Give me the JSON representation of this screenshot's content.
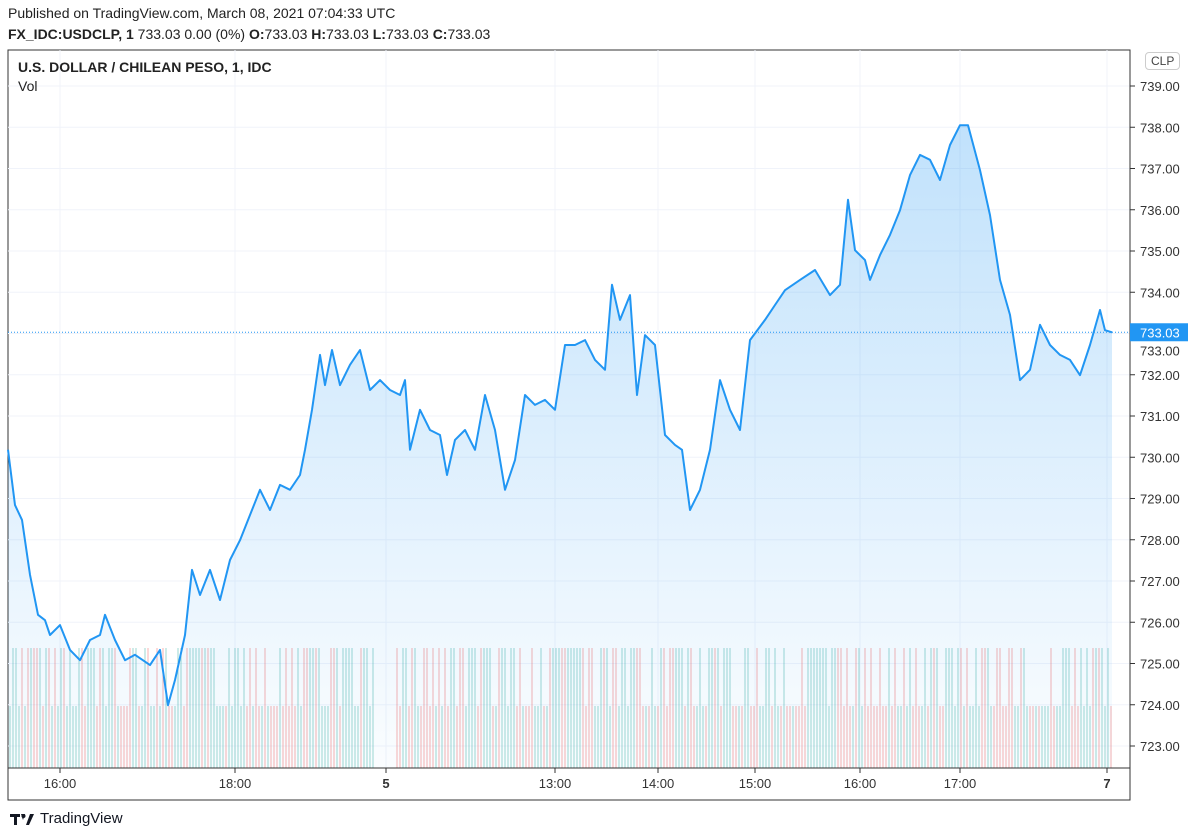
{
  "header": {
    "published": "Published on TradingView.com, March 08, 2021 07:04:33 UTC",
    "symbol": "FX_IDC:USDCLP, 1",
    "quote": "733.03 0.00 (0%)",
    "o_label": "O:",
    "o": "733.03",
    "h_label": "H:",
    "h": "733.03",
    "l_label": "L:",
    "l": "733.03",
    "c_label": "C:",
    "c": "733.03"
  },
  "legend": {
    "title": "U.S. DOLLAR / CHILEAN PESO, 1, IDC",
    "volume": "Vol"
  },
  "currency": "CLP",
  "branding": "TradingView",
  "colors": {
    "line": "#2196f3",
    "up_vol": "#26a69a",
    "down_vol": "#ef5350",
    "grid": "#f0f3fa"
  },
  "chart_data": {
    "type": "area",
    "title": "U.S. DOLLAR / CHILEAN PESO, 1, IDC",
    "ylim": [
      722.6,
      739.9
    ],
    "yticks": [
      "723.00",
      "724.00",
      "725.00",
      "726.00",
      "727.00",
      "728.00",
      "729.00",
      "730.00",
      "731.00",
      "732.00",
      "733.00",
      "734.00",
      "735.00",
      "736.00",
      "737.00",
      "738.00",
      "739.00"
    ],
    "last_price": "733.03",
    "xlim": [
      0,
      1122
    ],
    "xticks": [
      {
        "bar": 52,
        "label": "16:00",
        "bold": false
      },
      {
        "bar": 227,
        "label": "18:00",
        "bold": false
      },
      {
        "bar": 378,
        "label": "5",
        "bold": true
      },
      {
        "bar": 547,
        "label": "13:00",
        "bold": false
      },
      {
        "bar": 650,
        "label": "14:00",
        "bold": false
      },
      {
        "bar": 747,
        "label": "15:00",
        "bold": false
      },
      {
        "bar": 852,
        "label": "16:00",
        "bold": false
      },
      {
        "bar": 952,
        "label": "17:00",
        "bold": false
      },
      {
        "bar": 1099,
        "label": "7",
        "bold": true
      }
    ],
    "x": [
      0,
      7,
      14,
      22,
      30,
      37,
      42,
      52,
      62,
      72,
      82,
      92,
      97,
      107,
      117,
      127,
      142,
      152,
      160,
      167,
      177,
      184,
      192,
      202,
      212,
      222,
      232,
      242,
      252,
      262,
      272,
      282,
      292,
      297,
      304,
      312,
      317,
      324,
      332,
      342,
      352,
      362,
      372,
      382,
      392,
      397,
      402,
      412,
      422,
      432,
      439,
      447,
      457,
      467,
      477,
      487,
      497,
      507,
      517,
      527,
      537,
      547,
      557,
      567,
      577,
      587,
      597,
      604,
      612,
      622,
      629,
      637,
      647,
      657,
      667,
      674,
      682,
      692,
      702,
      712,
      722,
      732,
      742,
      757,
      767,
      777,
      792,
      807,
      822,
      832,
      840,
      847,
      857,
      862,
      872,
      882,
      892,
      902,
      912,
      922,
      932,
      942,
      952,
      960,
      972,
      982,
      992,
      1002,
      1012,
      1022,
      1032,
      1042,
      1052,
      1062,
      1072,
      1082,
      1092,
      1097,
      1104
    ],
    "values": [
      730.18,
      728.84,
      728.48,
      727.15,
      726.18,
      726.05,
      725.69,
      725.93,
      725.33,
      725.08,
      725.57,
      725.69,
      726.18,
      725.57,
      725.08,
      725.21,
      724.96,
      725.33,
      723.99,
      724.6,
      725.69,
      727.27,
      726.66,
      727.27,
      726.54,
      727.51,
      727.99,
      728.6,
      729.21,
      728.72,
      729.33,
      729.21,
      729.57,
      730.18,
      731.15,
      732.48,
      731.75,
      732.6,
      731.75,
      732.24,
      732.6,
      731.63,
      731.87,
      731.63,
      731.51,
      731.87,
      730.18,
      731.15,
      730.66,
      730.54,
      729.57,
      730.42,
      730.66,
      730.18,
      731.51,
      730.66,
      729.21,
      729.93,
      731.51,
      731.27,
      731.39,
      731.15,
      732.72,
      732.72,
      732.84,
      732.36,
      732.12,
      734.18,
      733.33,
      733.93,
      731.51,
      732.96,
      732.72,
      730.54,
      730.3,
      730.18,
      728.72,
      729.21,
      730.18,
      731.87,
      731.15,
      730.66,
      732.84,
      733.33,
      733.69,
      734.05,
      734.3,
      734.54,
      733.93,
      734.18,
      736.24,
      735.02,
      734.78,
      734.3,
      734.9,
      735.39,
      735.99,
      736.84,
      737.33,
      737.21,
      736.72,
      737.57,
      738.05,
      738.05,
      736.96,
      735.87,
      734.3,
      733.45,
      731.87,
      732.12,
      733.21,
      732.72,
      732.48,
      732.36,
      731.99,
      732.72,
      733.57,
      733.08,
      733.03
    ]
  }
}
